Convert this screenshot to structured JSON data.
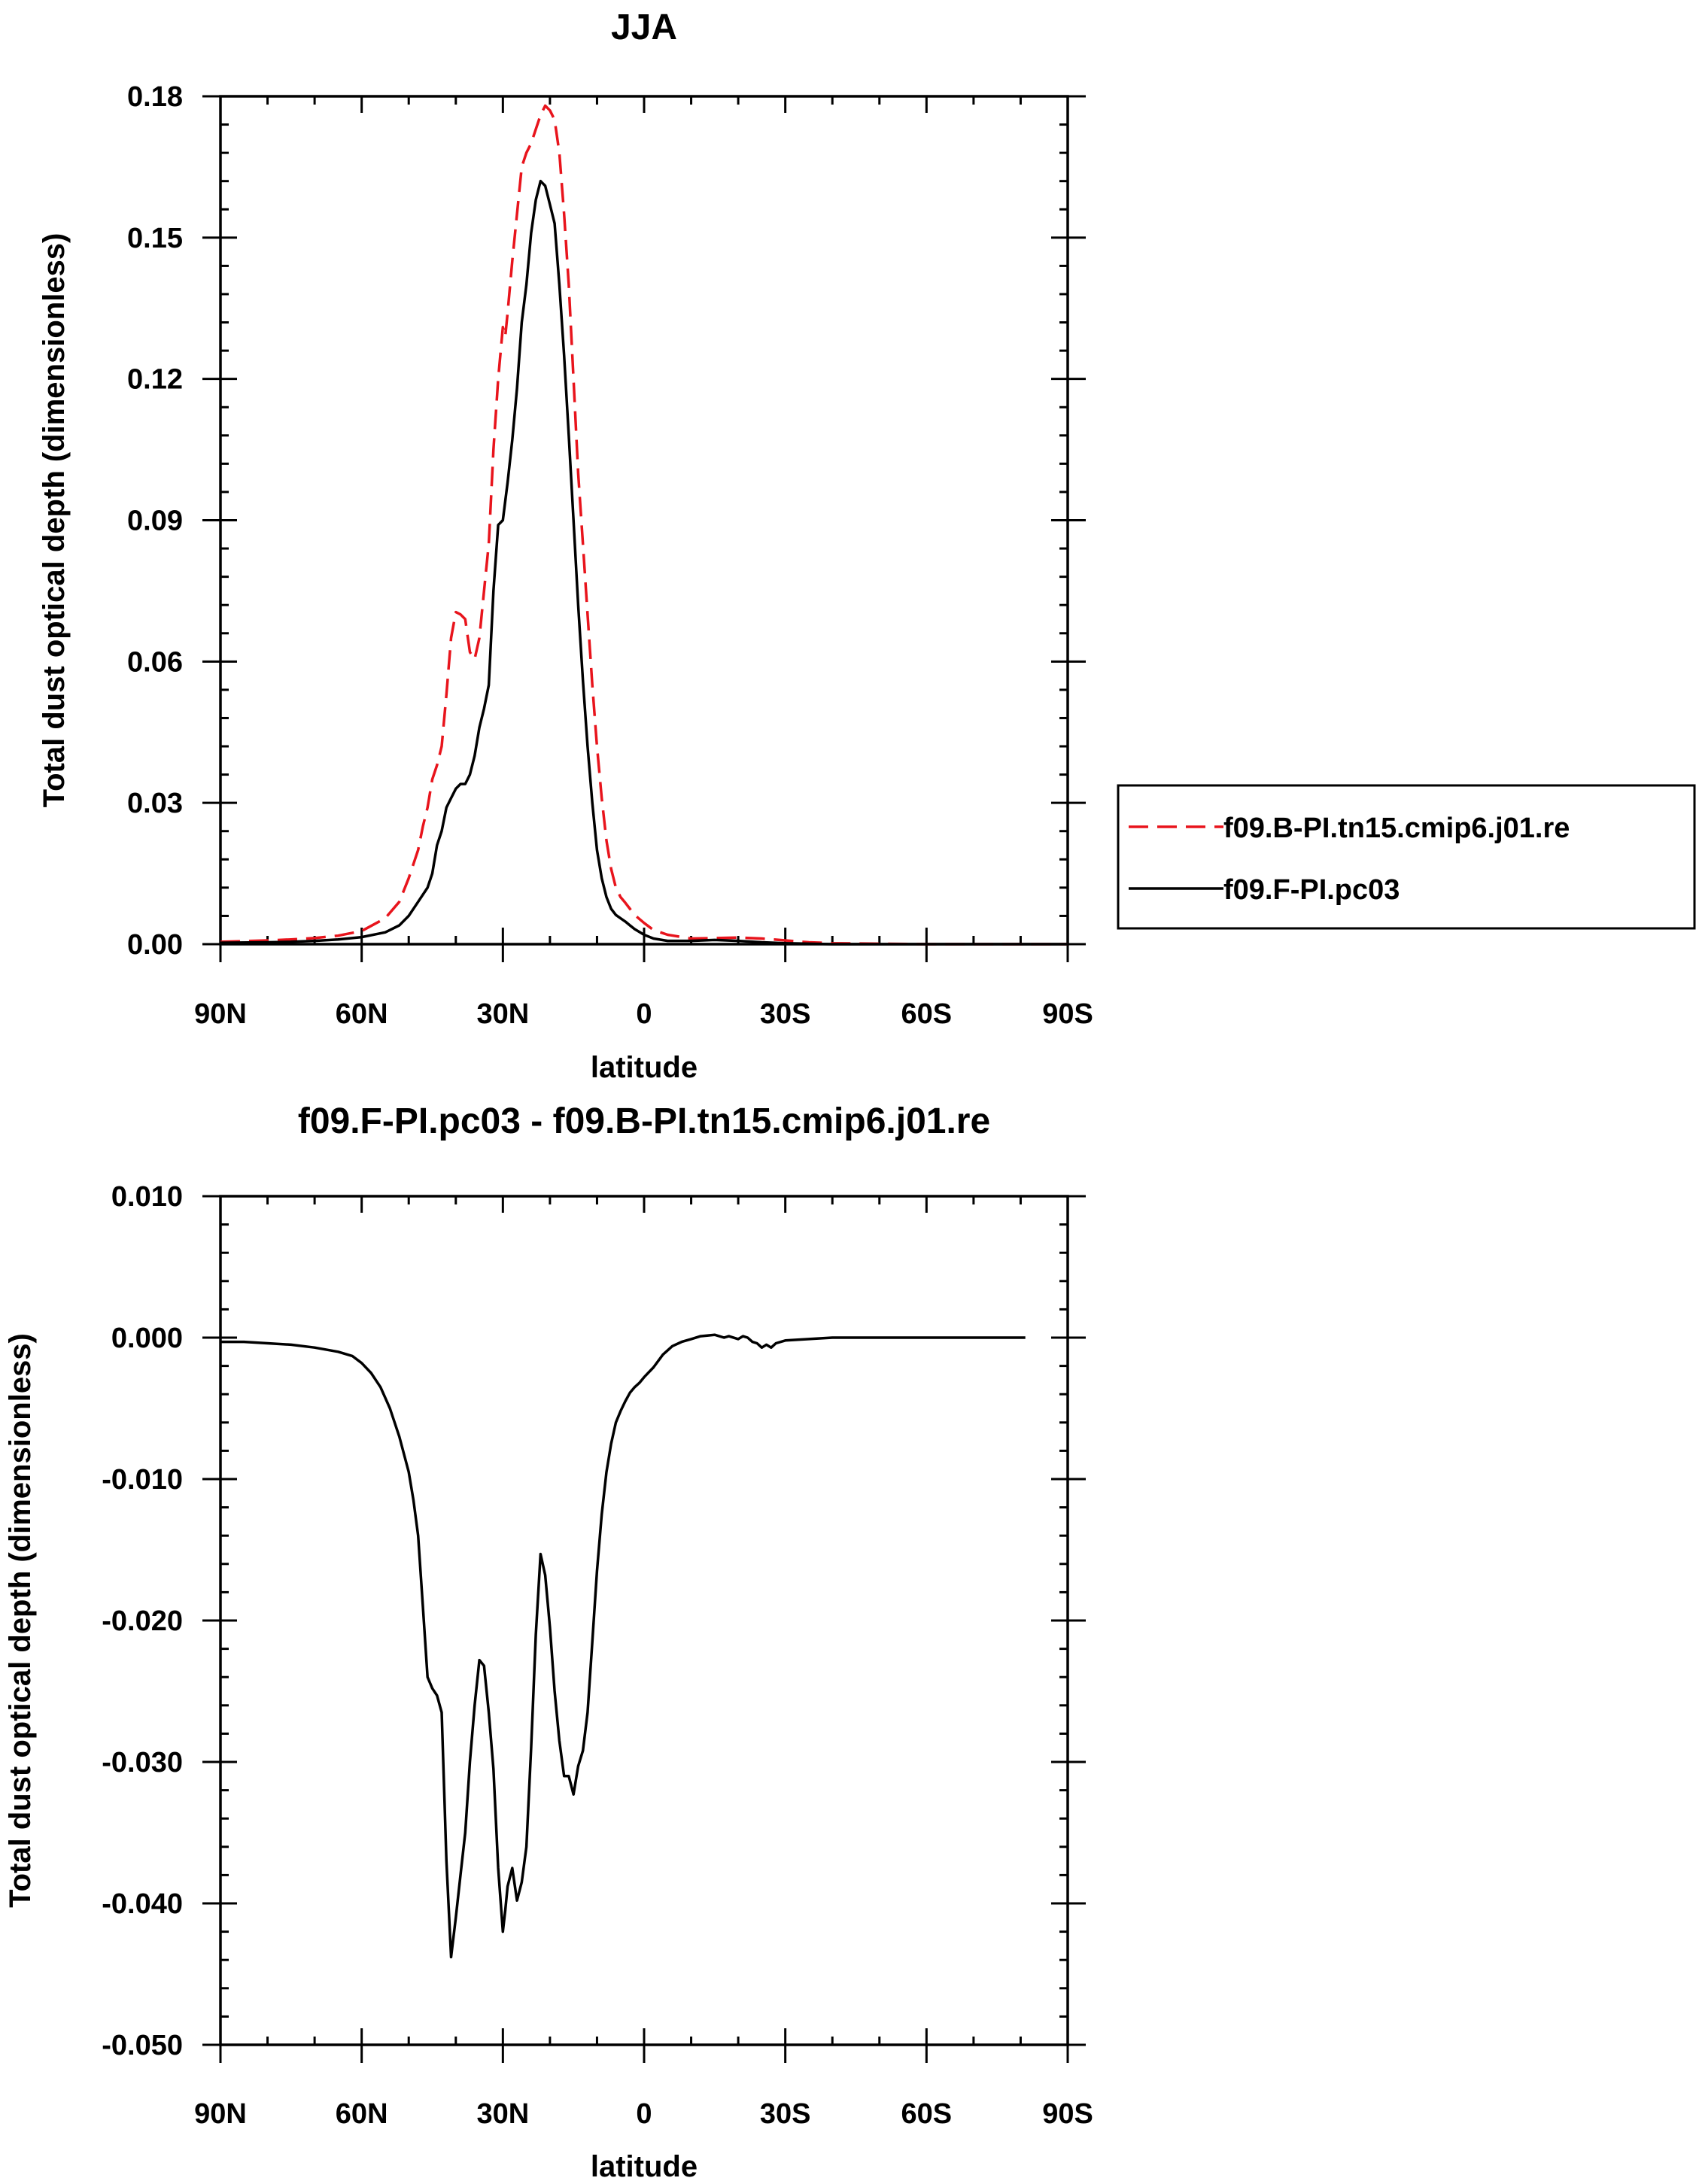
{
  "chart_data": [
    {
      "type": "line",
      "title": "JJA",
      "xlabel": "latitude",
      "ylabel": "Total dust optical depth (dimensionless)",
      "xlim": [
        90,
        -90
      ],
      "ylim": [
        0.0,
        0.18
      ],
      "x_ticks": [
        {
          "value": 90,
          "label": "90N"
        },
        {
          "value": 60,
          "label": "60N"
        },
        {
          "value": 30,
          "label": "30N"
        },
        {
          "value": 0,
          "label": "0"
        },
        {
          "value": -30,
          "label": "30S"
        },
        {
          "value": -60,
          "label": "60S"
        },
        {
          "value": -90,
          "label": "90S"
        }
      ],
      "y_ticks": [
        {
          "value": 0.0,
          "label": "0.00"
        },
        {
          "value": 0.03,
          "label": "0.03"
        },
        {
          "value": 0.06,
          "label": "0.06"
        },
        {
          "value": 0.09,
          "label": "0.09"
        },
        {
          "value": 0.12,
          "label": "0.12"
        },
        {
          "value": 0.15,
          "label": "0.15"
        },
        {
          "value": 0.18,
          "label": "0.18"
        }
      ],
      "legend_position": "right",
      "series": [
        {
          "name": "f09.B-PI.tn15.cmip6.j01.re",
          "color": "#e8141c",
          "dash": "dashed",
          "x": [
            90,
            80,
            75,
            70,
            65,
            60,
            55,
            52,
            50,
            48,
            47,
            46,
            45,
            44,
            43,
            42,
            41,
            40,
            39,
            38,
            37,
            36,
            35,
            34,
            33,
            32,
            31,
            30,
            29.5,
            29,
            28,
            27,
            26,
            25,
            24,
            23,
            22,
            21,
            20,
            19,
            18,
            17,
            16,
            15,
            14,
            13,
            12,
            11,
            10,
            9,
            8,
            7,
            6,
            5,
            4,
            3,
            2,
            0,
            -2,
            -5,
            -10,
            -15,
            -20,
            -25,
            -30,
            -35,
            -40,
            -50,
            -60,
            -70,
            -80,
            -90
          ],
          "y": [
            0.0005,
            0.0008,
            0.001,
            0.0013,
            0.0018,
            0.0028,
            0.0055,
            0.009,
            0.014,
            0.02,
            0.025,
            0.029,
            0.035,
            0.038,
            0.042,
            0.053,
            0.065,
            0.0705,
            0.07,
            0.069,
            0.062,
            0.0605,
            0.065,
            0.075,
            0.085,
            0.105,
            0.12,
            0.131,
            0.129,
            0.134,
            0.145,
            0.155,
            0.165,
            0.168,
            0.17,
            0.173,
            0.176,
            0.178,
            0.177,
            0.175,
            0.168,
            0.155,
            0.14,
            0.12,
            0.1,
            0.085,
            0.07,
            0.055,
            0.042,
            0.031,
            0.022,
            0.016,
            0.012,
            0.01,
            0.0088,
            0.0075,
            0.0062,
            0.0045,
            0.003,
            0.002,
            0.0012,
            0.0013,
            0.0014,
            0.0012,
            0.0008,
            0.0004,
            0.0002,
            0.0001,
            0.0,
            0.0,
            0.0,
            0.0
          ]
        },
        {
          "name": "f09.F-PI.pc03",
          "color": "#000000",
          "dash": "solid",
          "x": [
            90,
            80,
            75,
            70,
            65,
            60,
            55,
            52,
            50,
            48,
            46,
            45,
            44,
            43,
            42,
            41,
            40,
            39,
            38,
            37,
            36,
            35,
            34,
            33,
            32,
            31,
            30,
            29,
            28,
            27,
            26,
            25,
            24,
            23,
            22,
            21,
            20,
            19,
            18,
            17,
            16,
            15,
            14,
            13,
            12,
            11,
            10,
            9,
            8,
            7,
            6,
            5,
            4,
            3,
            2,
            0,
            -2,
            -5,
            -10,
            -15,
            -20,
            -25,
            -30,
            -35,
            -40,
            -50,
            -60,
            -70,
            -80,
            -90
          ],
          "y": [
            0.0003,
            0.0004,
            0.0005,
            0.0007,
            0.001,
            0.0015,
            0.0025,
            0.004,
            0.006,
            0.009,
            0.012,
            0.015,
            0.021,
            0.024,
            0.029,
            0.031,
            0.033,
            0.034,
            0.034,
            0.036,
            0.04,
            0.046,
            0.05,
            0.055,
            0.075,
            0.089,
            0.09,
            0.098,
            0.107,
            0.118,
            0.132,
            0.14,
            0.151,
            0.158,
            0.162,
            0.161,
            0.157,
            0.153,
            0.14,
            0.125,
            0.108,
            0.09,
            0.072,
            0.056,
            0.042,
            0.03,
            0.02,
            0.014,
            0.01,
            0.0075,
            0.0062,
            0.0055,
            0.0048,
            0.004,
            0.0032,
            0.002,
            0.0012,
            0.0007,
            0.0007,
            0.0009,
            0.0007,
            0.0004,
            0.0002,
            0.0001,
            0.0,
            0.0,
            0.0,
            0.0,
            0.0,
            0.0
          ]
        }
      ]
    },
    {
      "type": "line",
      "title": "f09.F-PI.pc03 - f09.B-PI.tn15.cmip6.j01.re",
      "xlabel": "latitude",
      "ylabel": "Total dust optical depth (dimensionless)",
      "xlim": [
        90,
        -90
      ],
      "ylim": [
        -0.05,
        0.01
      ],
      "x_ticks": [
        {
          "value": 90,
          "label": "90N"
        },
        {
          "value": 60,
          "label": "60N"
        },
        {
          "value": 30,
          "label": "30N"
        },
        {
          "value": 0,
          "label": "0"
        },
        {
          "value": -30,
          "label": "30S"
        },
        {
          "value": -60,
          "label": "60S"
        },
        {
          "value": -90,
          "label": "90S"
        }
      ],
      "y_ticks": [
        {
          "value": -0.05,
          "label": "-0.050"
        },
        {
          "value": -0.04,
          "label": "-0.040"
        },
        {
          "value": -0.03,
          "label": "-0.030"
        },
        {
          "value": -0.02,
          "label": "-0.020"
        },
        {
          "value": -0.01,
          "label": "-0.010"
        },
        {
          "value": 0.0,
          "label": "0.000"
        },
        {
          "value": 0.01,
          "label": "0.010"
        }
      ],
      "series": [
        {
          "color": "#000000",
          "dash": "solid",
          "x": [
            90,
            85,
            80,
            75,
            70,
            65,
            62,
            60,
            58,
            56,
            54,
            52,
            50,
            49,
            48,
            47,
            46,
            45,
            44,
            43,
            42,
            41,
            40,
            39,
            38,
            37,
            36,
            35,
            34,
            33,
            32,
            31,
            30,
            29.5,
            29,
            28,
            27,
            26,
            25,
            24,
            23,
            22,
            21,
            20,
            19,
            18,
            17,
            16,
            15,
            14,
            13,
            12,
            11,
            10,
            9,
            8,
            7,
            6,
            5,
            4,
            3,
            2,
            1,
            0,
            -2,
            -4,
            -6,
            -8,
            -10,
            -12,
            -15,
            -17,
            -18,
            -20,
            -21,
            -22,
            -23,
            -24,
            -25,
            -26,
            -27,
            -28,
            -30,
            -35,
            -40,
            -50,
            -60,
            -70,
            -80,
            -81
          ],
          "y": [
            -0.0003,
            -0.0003,
            -0.0004,
            -0.0005,
            -0.0007,
            -0.001,
            -0.0013,
            -0.0018,
            -0.0025,
            -0.0035,
            -0.005,
            -0.007,
            -0.0095,
            -0.0115,
            -0.014,
            -0.019,
            -0.024,
            -0.0248,
            -0.0253,
            -0.0265,
            -0.037,
            -0.0438,
            -0.041,
            -0.038,
            -0.035,
            -0.03,
            -0.026,
            -0.0228,
            -0.0232,
            -0.0265,
            -0.0305,
            -0.0375,
            -0.042,
            -0.0405,
            -0.0388,
            -0.0375,
            -0.0398,
            -0.0385,
            -0.036,
            -0.029,
            -0.021,
            -0.0153,
            -0.0168,
            -0.0205,
            -0.025,
            -0.0285,
            -0.031,
            -0.031,
            -0.0323,
            -0.0303,
            -0.0292,
            -0.0265,
            -0.0215,
            -0.0165,
            -0.0125,
            -0.0095,
            -0.0075,
            -0.006,
            -0.0052,
            -0.0045,
            -0.0039,
            -0.0035,
            -0.0032,
            -0.0028,
            -0.0021,
            -0.0012,
            -0.0006,
            -0.0003,
            -0.0001,
            0.0001,
            0.0002,
            0.0,
            0.0001,
            -0.0001,
            0.0001,
            0.0,
            -0.0003,
            -0.0004,
            -0.0007,
            -0.0005,
            -0.0007,
            -0.0004,
            -0.0002,
            -0.0001,
            0.0,
            0.0,
            0.0,
            0.0,
            0.0,
            0.0
          ]
        }
      ]
    }
  ]
}
